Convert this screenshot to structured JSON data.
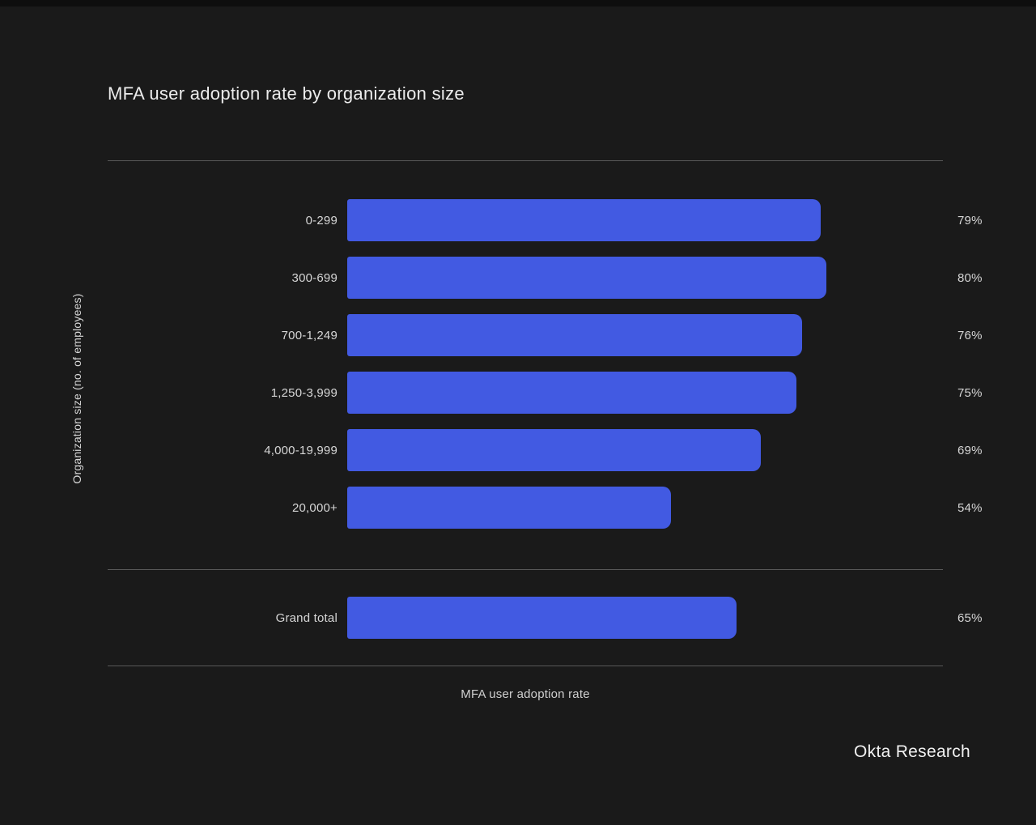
{
  "chart_data": {
    "type": "bar",
    "orientation": "horizontal",
    "title": "MFA user adoption rate by organization size",
    "xlabel": "MFA user adoption rate",
    "ylabel": "Organization size (no. of employees)",
    "categories": [
      "0-299",
      "300-699",
      "700-1,249",
      "1,250-3,999",
      "4,000-19,999",
      "20,000+"
    ],
    "values": [
      79,
      80,
      76,
      75,
      69,
      54
    ],
    "value_labels": [
      "79%",
      "80%",
      "76%",
      "75%",
      "69%",
      "54%"
    ],
    "grand_total": {
      "label": "Grand total",
      "value": 65,
      "value_label": "65%"
    },
    "xlim": [
      0,
      100
    ],
    "grid": false,
    "legend": null
  },
  "footer": {
    "source_label": "Okta Research"
  },
  "colors": {
    "background": "#1a1a1a",
    "top_strip": "#0e0e0e",
    "bar": "#425ae2",
    "divider": "#585858",
    "title_text": "#ececec",
    "label_text": "#d6d6d6"
  }
}
